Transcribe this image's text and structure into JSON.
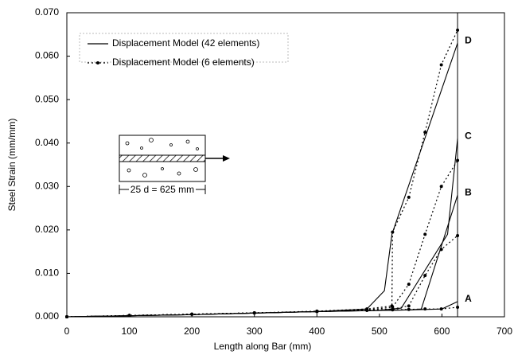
{
  "chart_data": {
    "type": "line",
    "xlabel": "Length along Bar (mm)",
    "ylabel": "Steel Strain (mm/mm)",
    "xlim": [
      0,
      700
    ],
    "xticks": [
      0,
      100,
      200,
      300,
      400,
      500,
      600,
      700
    ],
    "ylim": [
      0,
      0.07
    ],
    "yticks": [
      {
        "value": 0,
        "label": "0.000"
      },
      {
        "value": 0.01,
        "label": "0.010"
      },
      {
        "value": 0.02,
        "label": "0.020"
      },
      {
        "value": 0.03,
        "label": "0.030"
      },
      {
        "value": 0.04,
        "label": "0.040"
      },
      {
        "value": 0.05,
        "label": "0.050"
      },
      {
        "value": 0.06,
        "label": "0.060"
      },
      {
        "value": 0.07,
        "label": "0.070"
      }
    ],
    "inset_label": "25 d = 625 mm",
    "series": [
      {
        "name": "Displacement Model (42 elements)",
        "color": "#000000",
        "style": "solid",
        "curves": [
          {
            "label": "A",
            "x": [
              0,
              200,
              400,
              550,
              600,
              625
            ],
            "values": [
              0,
              0.0005,
              0.0012,
              0.0016,
              0.0018,
              0.0035
            ]
          },
          {
            "label": "B",
            "x": [
              0,
              200,
              400,
              550,
              567,
              625
            ],
            "values": [
              0,
              0.0005,
              0.0012,
              0.0016,
              0.0018,
              0.028
            ]
          },
          {
            "label": "C",
            "x": [
              0,
              200,
              400,
              500,
              535,
              609,
              625
            ],
            "values": [
              0,
              0.0005,
              0.0012,
              0.0015,
              0.002,
              0.019,
              0.041
            ]
          },
          {
            "label": "D",
            "x": [
              0,
              200,
              400,
              480,
              508,
              520,
              625
            ],
            "values": [
              0,
              0.0005,
              0.0012,
              0.0018,
              0.006,
              0.019,
              0.063
            ]
          }
        ]
      },
      {
        "name": "Displacement Model (6 elements)",
        "color": "#000000",
        "style": "dotted",
        "curves": [
          {
            "x": [
              0,
              100,
              200,
              300,
              400,
              480,
              521,
              547,
              573,
              599,
              625
            ],
            "values": [
              0,
              0.0003,
              0.0006,
              0.0009,
              0.0012,
              0.0015,
              0.0016,
              0.0017,
              0.0018,
              0.0018,
              0.0022
            ]
          },
          {
            "x": [
              0,
              100,
              200,
              300,
              400,
              480,
              521,
              547,
              573,
              599,
              625
            ],
            "values": [
              0,
              0.0003,
              0.0006,
              0.0009,
              0.0012,
              0.0015,
              0.0018,
              0.0025,
              0.0095,
              0.0155,
              0.0187
            ]
          },
          {
            "x": [
              0,
              100,
              200,
              300,
              400,
              480,
              521,
              547,
              573,
              599,
              625
            ],
            "values": [
              0,
              0.0003,
              0.0006,
              0.0009,
              0.0012,
              0.0016,
              0.0022,
              0.0075,
              0.019,
              0.03,
              0.036
            ]
          },
          {
            "x": [
              0,
              100,
              200,
              300,
              400,
              480,
              520,
              521,
              547,
              573,
              599,
              625
            ],
            "values": [
              0,
              0.0003,
              0.0006,
              0.0009,
              0.0013,
              0.0018,
              0.0025,
              0.0195,
              0.0275,
              0.0425,
              0.058,
              0.066
            ]
          }
        ]
      }
    ]
  }
}
